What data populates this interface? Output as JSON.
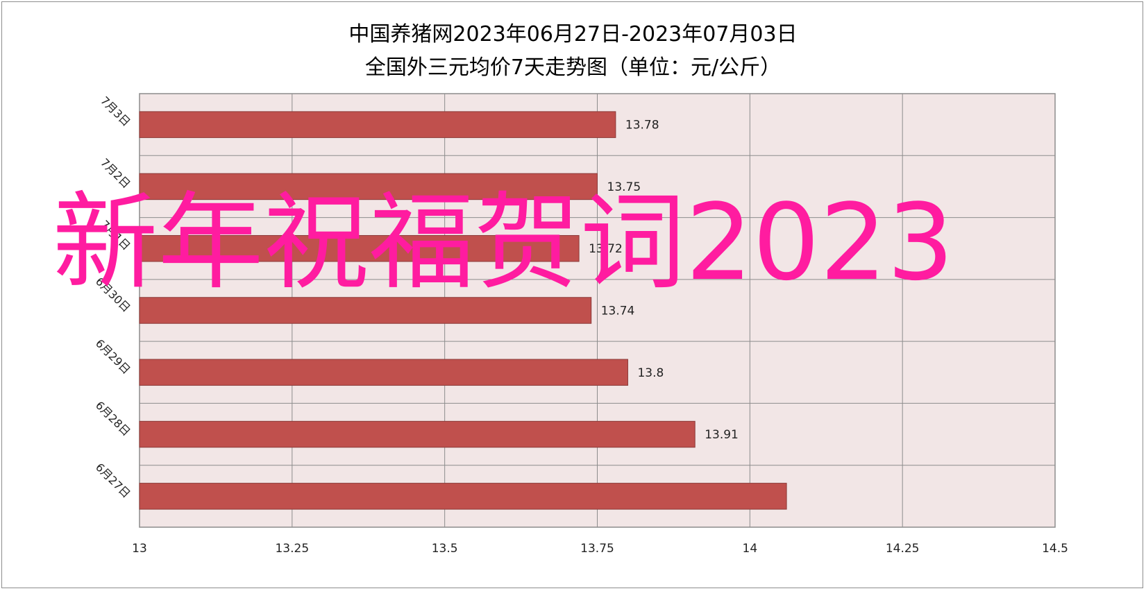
{
  "chart_data": {
    "type": "bar",
    "orientation": "horizontal",
    "title": "中国养猪网2023年06月27日-2023年07月03日",
    "subtitle": "全国外三元均价7天走势图（单位：元/公斤）",
    "categories": [
      "7月3日",
      "7月2日",
      "7月1日",
      "6月30日",
      "6月29日",
      "6月28日",
      "6月27日"
    ],
    "values": [
      13.78,
      13.75,
      13.72,
      13.74,
      13.8,
      13.91,
      14.06
    ],
    "data_labels": [
      "13.78",
      "13.75",
      "13.72",
      "13.74",
      "13.8",
      "13.91",
      ""
    ],
    "xlim": [
      13,
      14.5
    ],
    "xticks": [
      13,
      13.25,
      13.5,
      13.75,
      14,
      14.25,
      14.5
    ],
    "xtick_labels": [
      "13",
      "13.25",
      "13.5",
      "13.75",
      "14",
      "14.25",
      "14.5"
    ],
    "grid": true,
    "legend": "none",
    "colors": {
      "bar_fill": "#c0504d",
      "bar_stroke": "#8b3a38",
      "plot_background": "#f2e6e6",
      "grid": "#8c8c8c"
    }
  },
  "watermark": {
    "text": "新年祝福贺词2023",
    "color": "#ff1ca0"
  }
}
